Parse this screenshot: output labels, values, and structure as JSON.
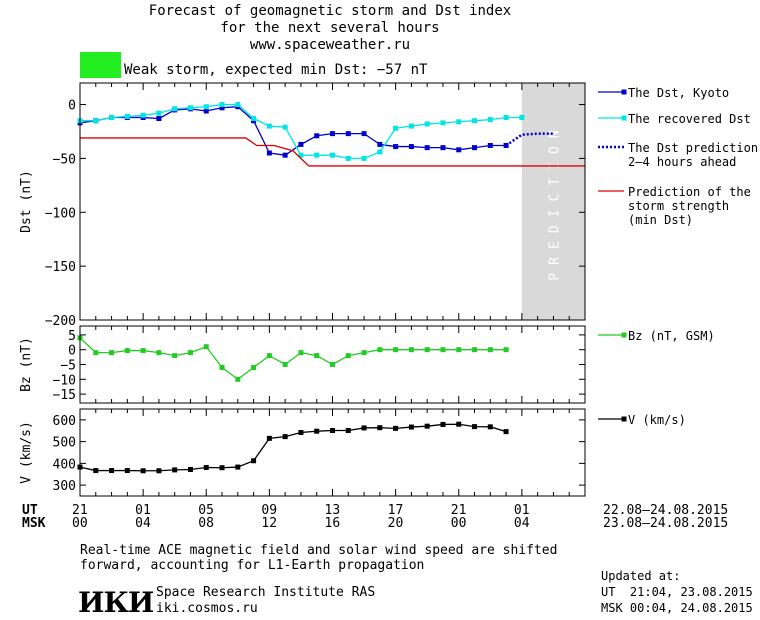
{
  "header": {
    "title_line1": "Forecast of geomagnetic storm and Dst index",
    "title_line2": "for the next several hours",
    "site": "www.spaceweather.ru",
    "storm_color": "#22ee22",
    "storm_label": "Weak storm, expected min Dst: −57 nT"
  },
  "prediction_label": "PREDICTION",
  "time_axis": {
    "ut_label": "UT",
    "msk_label": "MSK",
    "ut_ticks": [
      "21",
      "01",
      "05",
      "09",
      "13",
      "17",
      "21",
      "01"
    ],
    "msk_ticks": [
      "00",
      "04",
      "08",
      "12",
      "16",
      "20",
      "00",
      "04"
    ],
    "ut_range": "22.08–24.08.2015",
    "msk_range": "23.08–24.08.2015"
  },
  "chart_data": [
    {
      "type": "line",
      "ylabel": "Dst (nT)",
      "ylim": [
        -200,
        20
      ],
      "yticks": [
        "0",
        "−50",
        "−100",
        "−150",
        "−200"
      ],
      "ytick_values": [
        0,
        -50,
        -100,
        -150,
        -200
      ],
      "x_hours_from": "UT 21:00, 22.08.2015",
      "xlim": [
        0,
        32
      ],
      "prediction_x": [
        28,
        32
      ],
      "series": [
        {
          "name": "The Dst, Kyoto",
          "color": "#0000cc",
          "x": [
            0,
            1,
            2,
            3,
            4,
            5,
            6,
            7,
            8,
            9,
            10,
            11,
            12,
            13,
            14,
            15,
            16,
            17,
            18,
            19,
            20,
            21,
            22,
            23,
            24,
            25,
            26,
            27
          ],
          "values": [
            -17,
            -15,
            -12,
            -12,
            -12,
            -13,
            -5,
            -4,
            -6,
            -3,
            -2,
            -15,
            -45,
            -47,
            -37,
            -29,
            -27,
            -27,
            -27,
            -37,
            -39,
            -39,
            -40,
            -40,
            -42,
            -40,
            -38,
            -38
          ]
        },
        {
          "name": "The recovered Dst",
          "color": "#00e5e5",
          "x": [
            0,
            1,
            2,
            3,
            4,
            5,
            6,
            7,
            8,
            9,
            10,
            11,
            12,
            13,
            14,
            15,
            16,
            17,
            18,
            19,
            20,
            21,
            22,
            23,
            24,
            25,
            26,
            27,
            28
          ],
          "values": [
            -15,
            -15,
            -12,
            -11,
            -10,
            -8,
            -4,
            -3,
            -2,
            0,
            0,
            -13,
            -20,
            -21,
            -47,
            -47,
            -47,
            -50,
            -50,
            -44,
            -22,
            -20,
            -18,
            -17,
            -16,
            -15,
            -14,
            -12,
            -12
          ]
        },
        {
          "name": "The Dst prediction\n2–4 hours ahead",
          "color": "#0000cc",
          "style": "dotted",
          "x": [
            27,
            28,
            29,
            30
          ],
          "values": [
            -38,
            -28,
            -27,
            -27
          ]
        },
        {
          "name": "Prediction of the\nstorm strength\n(min Dst)",
          "color": "#dd0000",
          "style": "step",
          "x": [
            0,
            10.5,
            11.2,
            12.3,
            13.5,
            14.5,
            32
          ],
          "values": [
            -31,
            -31,
            -38,
            -38,
            -43,
            -57,
            -57
          ]
        }
      ]
    },
    {
      "type": "line",
      "ylabel": "Bz (nT)",
      "ylim": [
        -18,
        8
      ],
      "yticks": [
        "5",
        "0",
        "−5",
        "−10",
        "−15"
      ],
      "ytick_values": [
        5,
        0,
        -5,
        -10,
        -15
      ],
      "xlim": [
        0,
        32
      ],
      "series": [
        {
          "name": "Bz (nT, GSM)",
          "color": "#22cc22",
          "x": [
            0,
            1,
            2,
            3,
            4,
            5,
            6,
            7,
            8,
            9,
            10,
            11,
            12,
            13,
            14,
            15,
            16,
            17,
            18,
            19,
            20,
            21,
            22,
            23,
            24,
            25,
            26,
            27
          ],
          "values": [
            4,
            -1,
            -1,
            -0.3,
            -0.3,
            -1,
            -2,
            -1,
            1,
            -6,
            -10,
            -6,
            -2,
            -5,
            -1,
            -2,
            -5,
            -2,
            -1,
            0,
            0,
            0,
            0,
            0,
            0,
            0,
            0,
            0
          ]
        }
      ]
    },
    {
      "type": "line",
      "ylabel": "V (km/s)",
      "ylim": [
        250,
        650
      ],
      "yticks": [
        "600",
        "500",
        "400",
        "300"
      ],
      "ytick_values": [
        600,
        500,
        400,
        300
      ],
      "xlim": [
        0,
        32
      ],
      "series": [
        {
          "name": "V (km/s)",
          "color": "#000000",
          "x": [
            0,
            1,
            2,
            3,
            4,
            5,
            6,
            7,
            8,
            9,
            10,
            11,
            12,
            13,
            14,
            15,
            16,
            17,
            18,
            19,
            20,
            21,
            22,
            23,
            24,
            25,
            26,
            27
          ],
          "values": [
            383,
            367,
            367,
            367,
            366,
            366,
            370,
            372,
            381,
            380,
            383,
            412,
            515,
            523,
            542,
            548,
            551,
            551,
            563,
            564,
            561,
            567,
            571,
            579,
            580,
            569,
            568,
            546
          ]
        }
      ]
    }
  ],
  "footer": {
    "note_line1": "Real-time ACE magnetic field and solar wind speed are shifted",
    "note_line2": "forward, accounting for L1-Earth propagation",
    "logo_text": "ИКИ",
    "institute": "Space Research Institute RAS",
    "site": "iki.cosmos.ru",
    "updated_label": "Updated at:",
    "updated_ut": "UT  21:04, 23.08.2015",
    "updated_msk": "MSK 00:04, 24.08.2015"
  }
}
